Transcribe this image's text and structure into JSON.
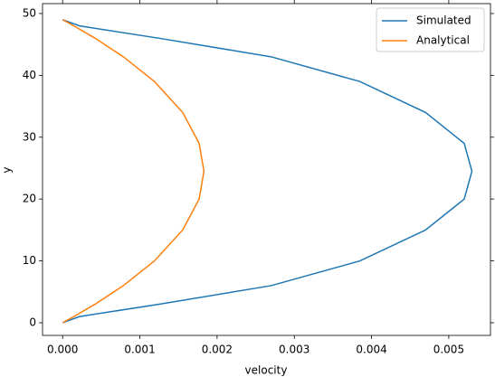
{
  "chart_data": {
    "type": "line",
    "x_label": "velocity",
    "y_label": "y",
    "y": [
      0,
      1,
      3,
      6,
      10,
      15,
      20,
      24.5,
      29,
      34,
      39,
      43,
      46,
      48,
      49
    ],
    "series": [
      {
        "name": "Simulated",
        "color": "#1f77b4",
        "values": [
          0,
          0.00022,
          0.00125,
          0.0027,
          0.00385,
          0.0047,
          0.0052,
          0.0053,
          0.0052,
          0.0047,
          0.00385,
          0.0027,
          0.00125,
          0.00022,
          0
        ]
      },
      {
        "name": "Analytical",
        "color": "#ff7f0e",
        "values": [
          0,
          0.000146,
          0.000421,
          0.000787,
          0.001189,
          0.001555,
          0.001768,
          0.00183,
          0.001768,
          0.001555,
          0.001189,
          0.000787,
          0.000421,
          0.000146,
          0
        ]
      }
    ],
    "xlim": [
      -0.00026,
      0.00554
    ],
    "ylim": [
      -2.05,
      51.6
    ],
    "xticks": [
      {
        "value": 0,
        "label": "0.000"
      },
      {
        "value": 0.001,
        "label": "0.001"
      },
      {
        "value": 0.002,
        "label": "0.002"
      },
      {
        "value": 0.003,
        "label": "0.003"
      },
      {
        "value": 0.004,
        "label": "0.004"
      },
      {
        "value": 0.005,
        "label": "0.005"
      }
    ],
    "yticks": [
      0,
      10,
      20,
      30,
      40,
      50
    ],
    "legend": "upper-right"
  }
}
